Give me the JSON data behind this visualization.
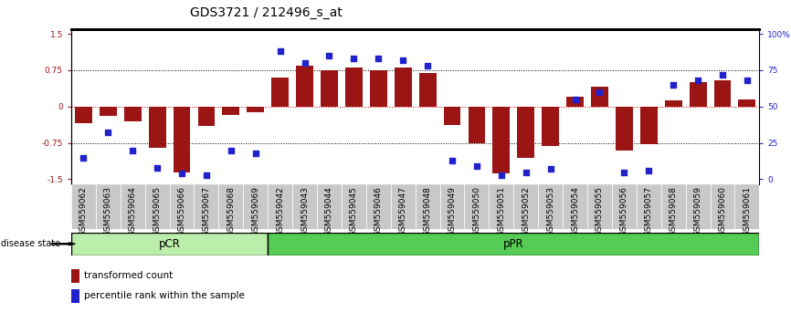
{
  "title": "GDS3721 / 212496_s_at",
  "samples": [
    "GSM559062",
    "GSM559063",
    "GSM559064",
    "GSM559065",
    "GSM559066",
    "GSM559067",
    "GSM559068",
    "GSM559069",
    "GSM559042",
    "GSM559043",
    "GSM559044",
    "GSM559045",
    "GSM559046",
    "GSM559047",
    "GSM559048",
    "GSM559049",
    "GSM559050",
    "GSM559051",
    "GSM559052",
    "GSM559053",
    "GSM559054",
    "GSM559055",
    "GSM559056",
    "GSM559057",
    "GSM559058",
    "GSM559059",
    "GSM559060",
    "GSM559061"
  ],
  "bar_values": [
    -0.35,
    -0.2,
    -0.3,
    -0.85,
    -1.35,
    -0.4,
    -0.18,
    -0.12,
    0.6,
    0.85,
    0.75,
    0.8,
    0.75,
    0.8,
    0.7,
    -0.38,
    -0.75,
    -1.38,
    -1.05,
    -0.82,
    0.2,
    0.42,
    -0.9,
    -0.78,
    0.12,
    0.5,
    0.55,
    0.15
  ],
  "percentile_values": [
    15,
    32,
    20,
    8,
    4,
    3,
    20,
    18,
    88,
    80,
    85,
    83,
    83,
    82,
    78,
    13,
    9,
    3,
    5,
    7,
    55,
    60,
    5,
    6,
    65,
    68,
    72,
    68
  ],
  "n_pCR": 8,
  "n_pPR": 20,
  "group_pCR_label": "pCR",
  "group_pPR_label": "pPR",
  "bar_color": "#9B1515",
  "dot_color": "#2222CC",
  "left_yticks": [
    -1.5,
    -0.75,
    0,
    0.75,
    1.5
  ],
  "left_yticklabels": [
    "-1.5",
    "-0.75",
    "0",
    "0.75",
    "1.5"
  ],
  "right_yticks": [
    0,
    25,
    50,
    75,
    100
  ],
  "right_yticklabels": [
    "0",
    "25",
    "50",
    "75",
    "100%"
  ],
  "hline_0_color": "#CC0000",
  "hline_075_color": "#000000",
  "disease_state_label": "disease state",
  "legend_bar_label": "transformed count",
  "legend_dot_label": "percentile rank within the sample",
  "pCR_color": "#BBEEAA",
  "pPR_color": "#55CC55",
  "ylim": [
    -1.6,
    1.6
  ],
  "title_fontsize": 10,
  "tick_fontsize": 6.5,
  "label_gray": "#C8C8C8",
  "top_spine_color": "#000000"
}
